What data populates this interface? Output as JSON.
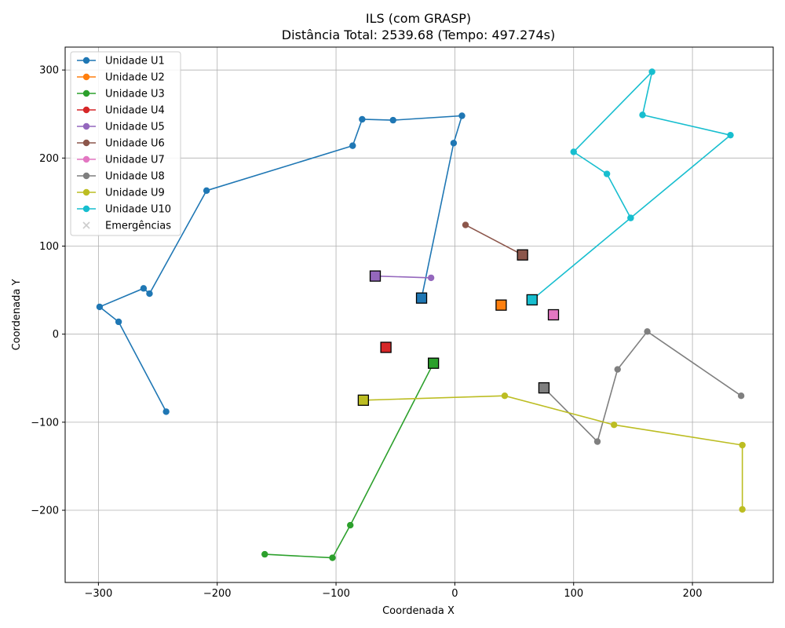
{
  "chart_data": {
    "type": "scatter",
    "title": "ILS (com GRASP)",
    "subtitle": "Distância Total: 2539.68 (Tempo: 497.274s)",
    "xlabel": "Coordenada X",
    "ylabel": "Coordenada Y",
    "xlim": [
      -328,
      268
    ],
    "ylim": [
      -282,
      326
    ],
    "xticks": [
      -300,
      -200,
      -100,
      0,
      100,
      200
    ],
    "yticks": [
      -200,
      -100,
      0,
      100,
      200,
      300
    ],
    "grid": true,
    "legend_position": "top-left",
    "series": [
      {
        "name": "Unidade U1",
        "color": "#1f77b4",
        "base": [
          -28,
          41
        ],
        "points": [
          [
            -243,
            -88
          ],
          [
            -283,
            14
          ],
          [
            -299,
            31
          ],
          [
            -262,
            52
          ],
          [
            -257,
            46
          ],
          [
            -209,
            163
          ],
          [
            -86,
            214
          ],
          [
            -78,
            244
          ],
          [
            -52,
            243
          ],
          [
            6,
            248
          ],
          [
            -1,
            217
          ],
          [
            -28,
            41
          ]
        ]
      },
      {
        "name": "Unidade U2",
        "color": "#ff7f0e",
        "base": [
          39,
          33
        ],
        "points": []
      },
      {
        "name": "Unidade U3",
        "color": "#2ca02c",
        "base": [
          -18,
          -33
        ],
        "points": [
          [
            -160,
            -250
          ],
          [
            -103,
            -254
          ],
          [
            -88,
            -217
          ],
          [
            -18,
            -33
          ]
        ]
      },
      {
        "name": "Unidade U4",
        "color": "#d62728",
        "base": [
          -58,
          -15
        ],
        "points": []
      },
      {
        "name": "Unidade U5",
        "color": "#9467bd",
        "base": [
          -67,
          66
        ],
        "points": [
          [
            -67,
            66
          ],
          [
            -20,
            64
          ]
        ]
      },
      {
        "name": "Unidade U6",
        "color": "#8c564b",
        "base": [
          57,
          90
        ],
        "points": [
          [
            9,
            124
          ],
          [
            57,
            90
          ]
        ]
      },
      {
        "name": "Unidade U7",
        "color": "#e377c2",
        "base": [
          83,
          22
        ],
        "points": []
      },
      {
        "name": "Unidade U8",
        "color": "#7f7f7f",
        "base": [
          75,
          -61
        ],
        "points": [
          [
            75,
            -61
          ],
          [
            120,
            -122
          ],
          [
            137,
            -40
          ],
          [
            162,
            3
          ],
          [
            241,
            -70
          ]
        ]
      },
      {
        "name": "Unidade U9",
        "color": "#bcbd22",
        "base": [
          -77,
          -75
        ],
        "points": [
          [
            -77,
            -75
          ],
          [
            42,
            -70
          ],
          [
            134,
            -103
          ],
          [
            242,
            -126
          ],
          [
            242,
            -199
          ]
        ]
      },
      {
        "name": "Unidade U10",
        "color": "#17becf",
        "base": [
          65,
          39
        ],
        "points": [
          [
            65,
            39
          ],
          [
            148,
            132
          ],
          [
            232,
            226
          ],
          [
            158,
            249
          ],
          [
            166,
            298
          ],
          [
            100,
            207
          ],
          [
            128,
            182
          ],
          [
            148,
            132
          ]
        ]
      }
    ],
    "emergencias": {
      "name": "Emergências",
      "color": "#cccccc"
    }
  }
}
